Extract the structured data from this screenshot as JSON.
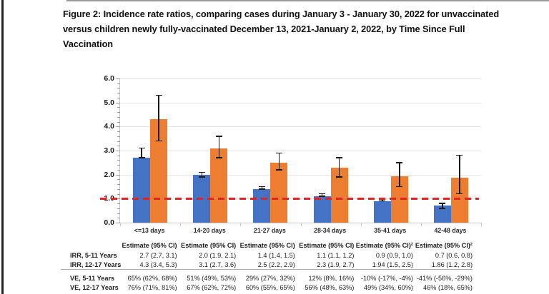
{
  "figure": {
    "title_line1": "Figure 2: Incidence rate ratios, comparing cases during January 3 - January 30, 2022 for unvaccinated",
    "title_line2": "versus children newly fully-vaccinated December 13, 2021-January 2, 2022, by Time Since Full",
    "title_line3": "Vaccination"
  },
  "chart_data": {
    "type": "bar",
    "title": "Incidence rate ratios by time since full vaccination",
    "categories": [
      "<=13 days",
      "14-20 days",
      "21-27 days",
      "28-34 days",
      "35-41 days",
      "42-48 days"
    ],
    "series": [
      {
        "name": "IRR, 5-11 Years",
        "color": "#4472C4",
        "values": [
          2.7,
          2.0,
          1.4,
          1.1,
          0.9,
          0.7
        ],
        "ci_low": [
          2.7,
          1.9,
          1.4,
          1.1,
          0.9,
          0.6
        ],
        "ci_high": [
          3.1,
          2.1,
          1.5,
          1.2,
          1.0,
          0.8
        ]
      },
      {
        "name": "IRR, 12-17 Years",
        "color": "#ED7D31",
        "values": [
          4.3,
          3.1,
          2.5,
          2.3,
          1.94,
          1.86
        ],
        "ci_low": [
          3.4,
          2.7,
          2.2,
          1.9,
          1.5,
          1.2
        ],
        "ci_high": [
          5.3,
          3.6,
          2.9,
          2.7,
          2.5,
          2.8
        ]
      }
    ],
    "reference_line": {
      "y": 1.0,
      "color": "#e02424",
      "style": "dashed"
    },
    "ylim": [
      0,
      6
    ],
    "ytick_step": 1.0,
    "ytick_labels": [
      "0.0",
      "1.0",
      "2.0",
      "3.0",
      "4.0",
      "5.0",
      "6.0"
    ],
    "grid": true,
    "legend": "none",
    "error_bar_color": "#1a1a1a"
  },
  "table": {
    "col_headers": [
      "Estimate (95% CI)",
      "Estimate (95% CI)",
      "Estimate (95% CI)",
      "Estimate (95% CI)",
      "Estimate (95% CI)²",
      "Estimate (95% CI)²"
    ],
    "rows": [
      {
        "label": "IRR, 5-11 Years",
        "cells": [
          "2.7 (2.7, 3.1)",
          "2.0 (1.9, 2.1)",
          "1.4 (1.4, 1.5)",
          "1.1 (1.1, 1.2)",
          "0.9 (0.9, 1.0)",
          "0.7 (0.6, 0.8)"
        ]
      },
      {
        "label": "IRR, 12-17 Years",
        "cells": [
          "4.3 (3.4, 5.3)",
          "3.1 (2.7, 3.6)",
          "2.5 (2.2, 2.9)",
          "2.3 (1.9, 2.7)",
          "1.94 (1.5, 2.5)",
          "1.86 (1.2, 2.8)"
        ]
      },
      {
        "label": "VE, 5-11 Years",
        "cells": [
          "65% (62%, 68%)",
          "51% (49%, 53%)",
          "29% (27%, 32%)",
          "12% (8%, 16%)",
          "-10% (-17%, -4%)",
          "-41% (-56%, -29%)"
        ]
      },
      {
        "label": "VE, 12-17 Years",
        "cells": [
          "76% (71%, 81%)",
          "67% (62%, 72%)",
          "60% (55%, 65%)",
          "56% (48%, 63%)",
          "49% (34%, 60%)",
          "46% (18%, 65%)"
        ]
      }
    ]
  }
}
